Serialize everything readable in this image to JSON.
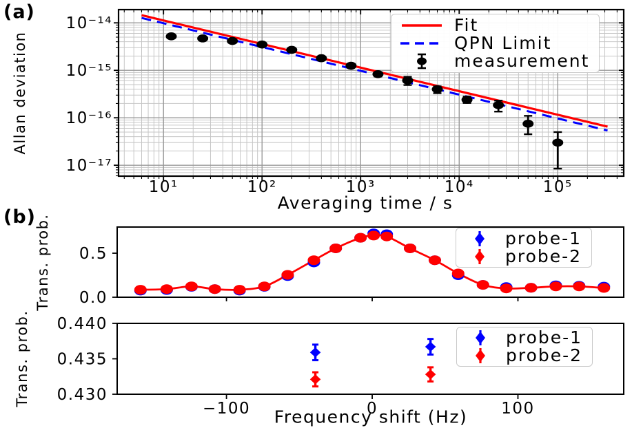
{
  "colors": {
    "red": "#ff0000",
    "blue": "#0000ff",
    "black": "#000000",
    "grid_major": "#989898",
    "grid_minor": "#c6c6c6",
    "legend_border": "#c9c9c9",
    "background": "#ffffff"
  },
  "chart_data": [
    {
      "id": "panel-a",
      "type": "line",
      "panel_label": "(a)",
      "xlabel": "Averaging time / s",
      "ylabel": "Allan deviation",
      "xscale": "log",
      "yscale": "log",
      "xlim": [
        3.5,
        467000
      ],
      "ylim": [
        5.9e-18,
        1.9e-14
      ],
      "grid": "major+minor",
      "legend_position": "upper right",
      "xticks": [
        {
          "v": 10,
          "label": "10¹"
        },
        {
          "v": 100,
          "label": "10²"
        },
        {
          "v": 1000,
          "label": "10³"
        },
        {
          "v": 10000,
          "label": "10⁴"
        },
        {
          "v": 100000,
          "label": "10⁵"
        }
      ],
      "yticks": [
        {
          "v": 1e-14,
          "label": "10⁻¹⁴"
        },
        {
          "v": 1e-15,
          "label": "10⁻¹⁵"
        },
        {
          "v": 1e-16,
          "label": "10⁻¹⁶"
        },
        {
          "v": 1e-17,
          "label": "10⁻¹⁷"
        }
      ],
      "legend": [
        {
          "name": "Fit"
        },
        {
          "name": "QPN Limit"
        },
        {
          "name": "measurement"
        }
      ],
      "series": {
        "fit": {
          "name": "Fit",
          "color": "#ff0000",
          "style": "solid",
          "x": [
            6,
            320000
          ],
          "y": [
            1.45e-14,
            6.5e-17
          ]
        },
        "qpn": {
          "name": "QPN Limit",
          "color": "#0000ff",
          "style": "dashed",
          "x": [
            6,
            320000
          ],
          "y": [
            1.27e-14,
            5.4e-17
          ]
        },
        "measurement": {
          "name": "measurement",
          "color": "#000000",
          "marker": "circle",
          "tau": [
            12,
            25,
            50,
            100,
            200,
            400,
            800,
            1500,
            3000,
            6000,
            12000,
            25000,
            50000,
            100000
          ],
          "sigma": [
            5.2e-15,
            4.7e-15,
            4.15e-15,
            3.5e-15,
            2.7e-15,
            1.8e-15,
            1.25e-15,
            8.3e-16,
            6.1e-16,
            4e-16,
            2.4e-16,
            1.85e-16,
            7.5e-17,
            3e-17
          ],
          "err_lo": [
            5.2e-15,
            4.7e-15,
            4.15e-15,
            3.5e-15,
            2.7e-15,
            1.8e-15,
            1.2e-15,
            7.4e-16,
            4.9e-16,
            3.3e-16,
            2.05e-16,
            1.35e-16,
            4.5e-17,
            8.5e-18
          ],
          "err_hi": [
            5.2e-15,
            4.7e-15,
            4.15e-15,
            3.5e-15,
            2.7e-15,
            1.8e-15,
            1.3e-15,
            9.2e-16,
            7.3e-16,
            4.6e-16,
            2.8e-16,
            2.3e-16,
            1.1e-16,
            5e-17
          ]
        }
      }
    },
    {
      "id": "panel-b-top",
      "type": "scatter+curve",
      "panel_label": "(b)",
      "ylabel": "Trans. prob.",
      "xscale": "linear",
      "yscale": "linear",
      "xlim": [
        -175,
        172.6
      ],
      "ylim": [
        0,
        0.797
      ],
      "grid": "off",
      "legend_position": "upper right",
      "xticks": [
        {
          "v": -100,
          "label": ""
        },
        {
          "v": 0,
          "label": ""
        },
        {
          "v": 100,
          "label": ""
        }
      ],
      "yticks": [
        {
          "v": 0.0,
          "label": "0.0"
        },
        {
          "v": 0.5,
          "label": "0.5"
        }
      ],
      "legend": [
        {
          "name": "probe-1"
        },
        {
          "name": "probe-2"
        }
      ],
      "x": [
        -159,
        -141,
        -124,
        -108,
        -91,
        -74,
        -58,
        -40,
        -25,
        -8,
        1,
        10,
        26,
        43,
        59,
        76,
        92,
        109,
        126,
        142,
        159
      ],
      "series": {
        "probe1": {
          "name": "probe-1",
          "color": "#0000ff",
          "values": [
            0.075,
            0.082,
            0.118,
            0.092,
            0.075,
            0.118,
            0.24,
            0.395,
            0.555,
            0.675,
            0.725,
            0.715,
            0.555,
            0.42,
            0.25,
            0.14,
            0.115,
            0.107,
            0.135,
            0.13,
            0.12
          ]
        },
        "probe2": {
          "name": "probe-2",
          "color": "#ff0000",
          "values": [
            0.085,
            0.092,
            0.123,
            0.092,
            0.085,
            0.123,
            0.254,
            0.42,
            0.555,
            0.675,
            0.7,
            0.69,
            0.555,
            0.42,
            0.27,
            0.14,
            0.1,
            0.107,
            0.123,
            0.123,
            0.105
          ]
        },
        "fit_curve": {
          "name": "fit",
          "color": "#ff0000",
          "follows": "probe2"
        }
      }
    },
    {
      "id": "panel-b-bottom",
      "type": "scatter-errorbar",
      "ylabel": "Trans. prob.",
      "xlabel": "Frequency shift (Hz)",
      "xscale": "linear",
      "yscale": "linear",
      "xlim": [
        -175,
        172.6
      ],
      "ylim": [
        0.43,
        0.44
      ],
      "grid": "off",
      "legend_position": "upper right",
      "xticks": [
        {
          "v": -100,
          "label": "−100"
        },
        {
          "v": 0,
          "label": "0"
        },
        {
          "v": 100,
          "label": "100"
        }
      ],
      "yticks": [
        {
          "v": 0.43,
          "label": "0.430"
        },
        {
          "v": 0.435,
          "label": "0.435"
        },
        {
          "v": 0.44,
          "label": "0.440"
        }
      ],
      "legend": [
        {
          "name": "probe-1"
        },
        {
          "name": "probe-2"
        }
      ],
      "series": {
        "probe1": {
          "name": "probe-1",
          "color": "#0000ff",
          "marker": "diamond",
          "x": [
            -39,
            40
          ],
          "y": [
            0.4359,
            0.4367
          ],
          "yerr": [
            0.0011,
            0.0011
          ]
        },
        "probe2": {
          "name": "probe-2",
          "color": "#ff0000",
          "marker": "diamond",
          "x": [
            -39,
            40
          ],
          "y": [
            0.4321,
            0.4328
          ],
          "yerr": [
            0.001,
            0.001
          ]
        }
      }
    }
  ]
}
